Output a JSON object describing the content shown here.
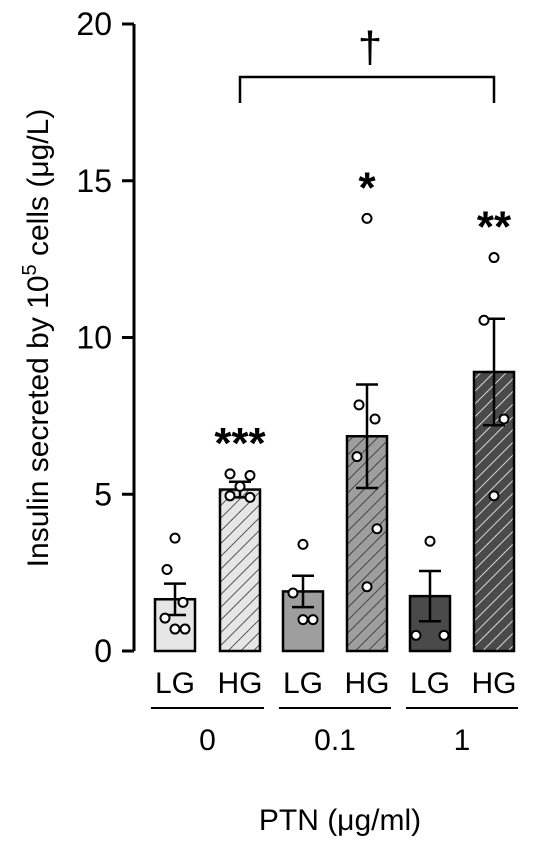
{
  "chart_data": {
    "type": "bar",
    "ylabel_main": "Insulin secreted by 10",
    "ylabel_sup": "5",
    "ylabel_tail": " cells (μg/L)",
    "xlabel": "PTN (μg/ml)",
    "ylim": [
      0,
      20
    ],
    "yticks": [
      "0",
      "5",
      "10",
      "15",
      "20"
    ],
    "groups": [
      "0",
      "0.1",
      "1"
    ],
    "bars": [
      {
        "group": "0",
        "condition": "LG",
        "mean": 1.65,
        "sem": 0.5,
        "points": [
          3.6,
          2.6,
          1.55,
          1.05,
          0.7,
          0.7
        ],
        "fill": "#e6e6e6",
        "hatch": "none"
      },
      {
        "group": "0",
        "condition": "HG",
        "mean": 5.15,
        "sem": 0.25,
        "points": [
          5.65,
          5.6,
          5.25,
          4.95,
          4.9
        ],
        "fill": "#e6e6e6",
        "hatch": "hatch",
        "significance": "***"
      },
      {
        "group": "0.1",
        "condition": "LG",
        "mean": 1.9,
        "sem": 0.5,
        "points": [
          3.4,
          1.85,
          1.0,
          1.0
        ],
        "fill": "#9e9e9e",
        "hatch": "none"
      },
      {
        "group": "0.1",
        "condition": "HG",
        "mean": 6.85,
        "sem": 1.65,
        "points": [
          13.8,
          7.85,
          7.4,
          6.2,
          3.9,
          2.05
        ],
        "fill": "#9e9e9e",
        "hatch": "hatch",
        "significance": "*"
      },
      {
        "group": "1",
        "condition": "LG",
        "mean": 1.75,
        "sem": 0.8,
        "points": [
          3.5,
          0.5,
          0.5
        ],
        "fill": "#4a4a4a",
        "hatch": "none"
      },
      {
        "group": "1",
        "condition": "HG",
        "mean": 8.9,
        "sem": 1.7,
        "points": [
          12.55,
          10.55,
          7.4,
          4.95
        ],
        "fill": "#4a4a4a",
        "hatch": "hatch",
        "significance": "**"
      }
    ],
    "bracket": {
      "from_group": "0",
      "to_group": "1",
      "label": "†"
    },
    "colors": {
      "light": "#e6e6e6",
      "medium": "#9e9e9e",
      "dark": "#4a4a4a",
      "axis": "#000000"
    }
  }
}
